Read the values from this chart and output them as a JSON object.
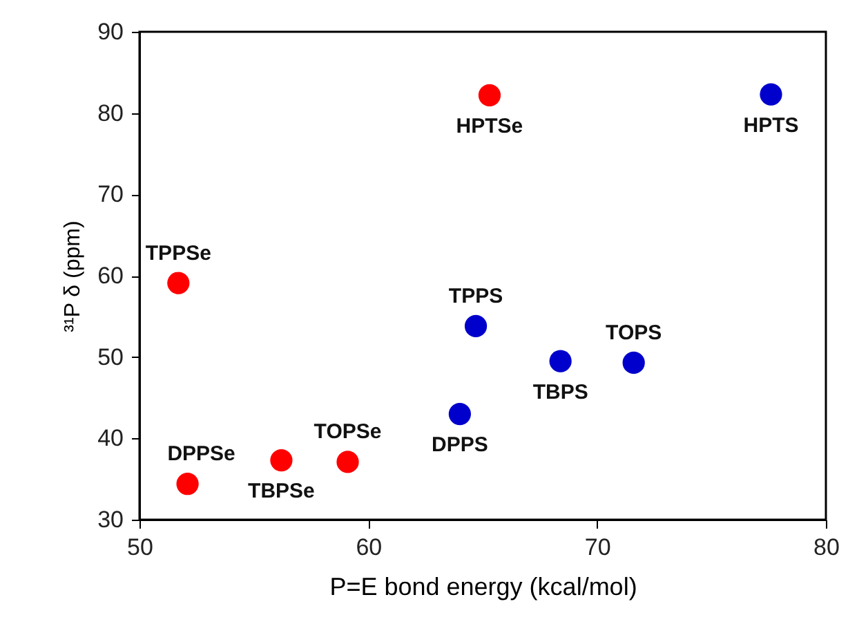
{
  "chart_data": {
    "type": "scatter",
    "xlabel": "P=E bond energy (kcal/mol)",
    "ylabel": "³¹P δ (ppm)",
    "xlim": [
      50,
      80
    ],
    "xticks": [
      50,
      60,
      70,
      80
    ],
    "ylim": [
      30,
      90
    ],
    "yticks": [
      30,
      40,
      50,
      60,
      70,
      80,
      90
    ],
    "grid": false,
    "legend": false,
    "marker": "circle",
    "series": [
      {
        "color": "#ff0000",
        "x": [
          51.7,
          52.1,
          56.2,
          59.1,
          65.3
        ],
        "values": [
          59.1,
          34.4,
          37.3,
          37.1,
          82.2
        ]
      },
      {
        "color": "#0000cc",
        "x": [
          64.0,
          64.7,
          68.4,
          71.6,
          77.6
        ],
        "values": [
          43.0,
          53.8,
          49.5,
          49.3,
          82.3
        ]
      }
    ],
    "annotations": [
      {
        "text": "TPPSe",
        "x": 51.7,
        "y": 59.1
      },
      {
        "text": "DPPSe",
        "x": 52.1,
        "y": 34.4
      },
      {
        "text": "TBPSe",
        "x": 56.2,
        "y": 37.3
      },
      {
        "text": "TOPSe",
        "x": 59.1,
        "y": 37.1
      },
      {
        "text": "HPTSe",
        "x": 65.3,
        "y": 82.2
      },
      {
        "text": "DPPS",
        "x": 64.0,
        "y": 43.0
      },
      {
        "text": "TPPS",
        "x": 64.7,
        "y": 53.8
      },
      {
        "text": "TBPS",
        "x": 68.4,
        "y": 49.5
      },
      {
        "text": "TOPS",
        "x": 71.6,
        "y": 49.3
      },
      {
        "text": "HPTS",
        "x": 77.6,
        "y": 82.3
      }
    ]
  }
}
